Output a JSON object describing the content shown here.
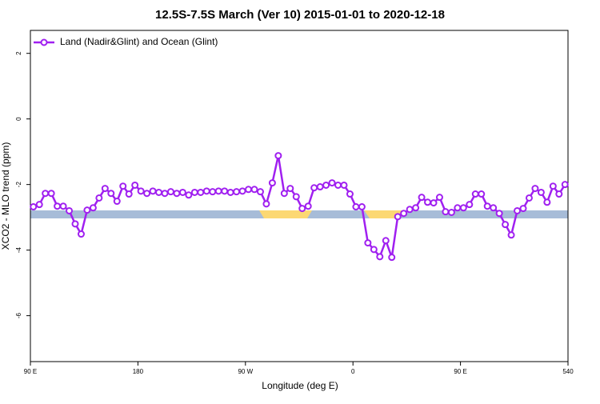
{
  "chart_data": {
    "type": "line",
    "title": "12.5S-7.5S March (Ver 10)   2015-01-01 to 2020-12-18",
    "xlabel": "Longitude (deg E)",
    "ylabel": "XCO2 - MLO trend (ppm)",
    "x": [
      92.5,
      97.5,
      102.5,
      107.5,
      112.5,
      117.5,
      122.5,
      127.5,
      132.5,
      137.5,
      142.5,
      147.5,
      152.5,
      157.5,
      162.5,
      167.5,
      172.5,
      177.5,
      182.5,
      187.5,
      192.5,
      197.5,
      202.5,
      207.5,
      212.5,
      217.5,
      222.5,
      227.5,
      232.5,
      237.5,
      242.5,
      247.5,
      252.5,
      257.5,
      262.5,
      267.5,
      272.5,
      277.5,
      282.5,
      287.5,
      292.5,
      297.5,
      302.5,
      307.5,
      312.5,
      317.5,
      322.5,
      327.5,
      332.5,
      337.5,
      342.5,
      347.5,
      352.5,
      357.5,
      362.5,
      367.5,
      372.5,
      377.5,
      382.5,
      387.5,
      392.5,
      397.5,
      402.5,
      407.5,
      412.5,
      417.5,
      422.5,
      427.5,
      432.5,
      437.5,
      442.5,
      447.5,
      452.5,
      457.5,
      462.5,
      467.5,
      472.5,
      477.5,
      482.5,
      487.5,
      492.5,
      497.5,
      502.5,
      507.5,
      512.5,
      517.5,
      522.5,
      527.5,
      532.5,
      537.5
    ],
    "series": [
      {
        "name": "Land (Nadir&Glint) and Ocean (Glint)",
        "color": "#a020f0",
        "values": [
          -2.68,
          -2.61,
          -2.27,
          -2.27,
          -2.66,
          -2.66,
          -2.8,
          -3.2,
          -3.51,
          -2.78,
          -2.71,
          -2.41,
          -2.12,
          -2.27,
          -2.51,
          -2.05,
          -2.29,
          -2.02,
          -2.2,
          -2.27,
          -2.2,
          -2.24,
          -2.27,
          -2.22,
          -2.27,
          -2.24,
          -2.32,
          -2.24,
          -2.24,
          -2.2,
          -2.22,
          -2.2,
          -2.2,
          -2.24,
          -2.22,
          -2.2,
          -2.15,
          -2.15,
          -2.22,
          -2.59,
          -1.95,
          -1.12,
          -2.27,
          -2.12,
          -2.37,
          -2.73,
          -2.66,
          -2.1,
          -2.07,
          -2.02,
          -1.95,
          -2.02,
          -2.02,
          -2.29,
          -2.68,
          -2.68,
          -3.78,
          -3.98,
          -4.2,
          -3.71,
          -4.22,
          -2.98,
          -2.88,
          -2.76,
          -2.71,
          -2.39,
          -2.54,
          -2.56,
          -2.39,
          -2.83,
          -2.85,
          -2.71,
          -2.71,
          -2.61,
          -2.29,
          -2.29,
          -2.66,
          -2.71,
          -2.88,
          -3.22,
          -3.54,
          -2.8,
          -2.73,
          -2.41,
          -2.12,
          -2.24,
          -2.54,
          -2.05,
          -2.29,
          -2.0
        ]
      }
    ],
    "xlim": [
      90,
      540
    ],
    "xticks": [
      {
        "value": 90,
        "label": "90 E"
      },
      180,
      {
        "value": 270,
        "label": "90 W"
      },
      {
        "value": 360,
        "label": "0"
      },
      {
        "value": 450,
        "label": "90 E"
      },
      540
    ],
    "ylim": [
      -7.4,
      2.7
    ],
    "yticks": [
      -6,
      -4,
      -2,
      0,
      2
    ],
    "legend": "top-left"
  }
}
